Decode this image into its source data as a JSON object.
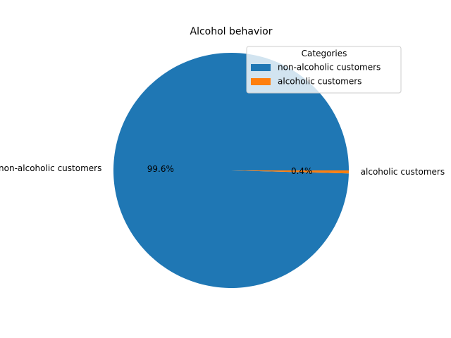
{
  "chart_data": {
    "type": "pie",
    "title": "Alcohol behavior",
    "categories": [
      "non-alcoholic customers",
      "alcoholic customers"
    ],
    "values": [
      99.6,
      0.4
    ],
    "value_unit": "percent",
    "percent_labels": [
      "99.6%",
      "0.4%"
    ],
    "colors": [
      "#1f77b4",
      "#ff7f0e"
    ],
    "start_angle_deg": 0,
    "direction": "counterclockwise",
    "legend": {
      "title": "Categories",
      "placement": "upper-right",
      "entries": [
        "non-alcoholic customers",
        "alcoholic customers"
      ]
    }
  }
}
